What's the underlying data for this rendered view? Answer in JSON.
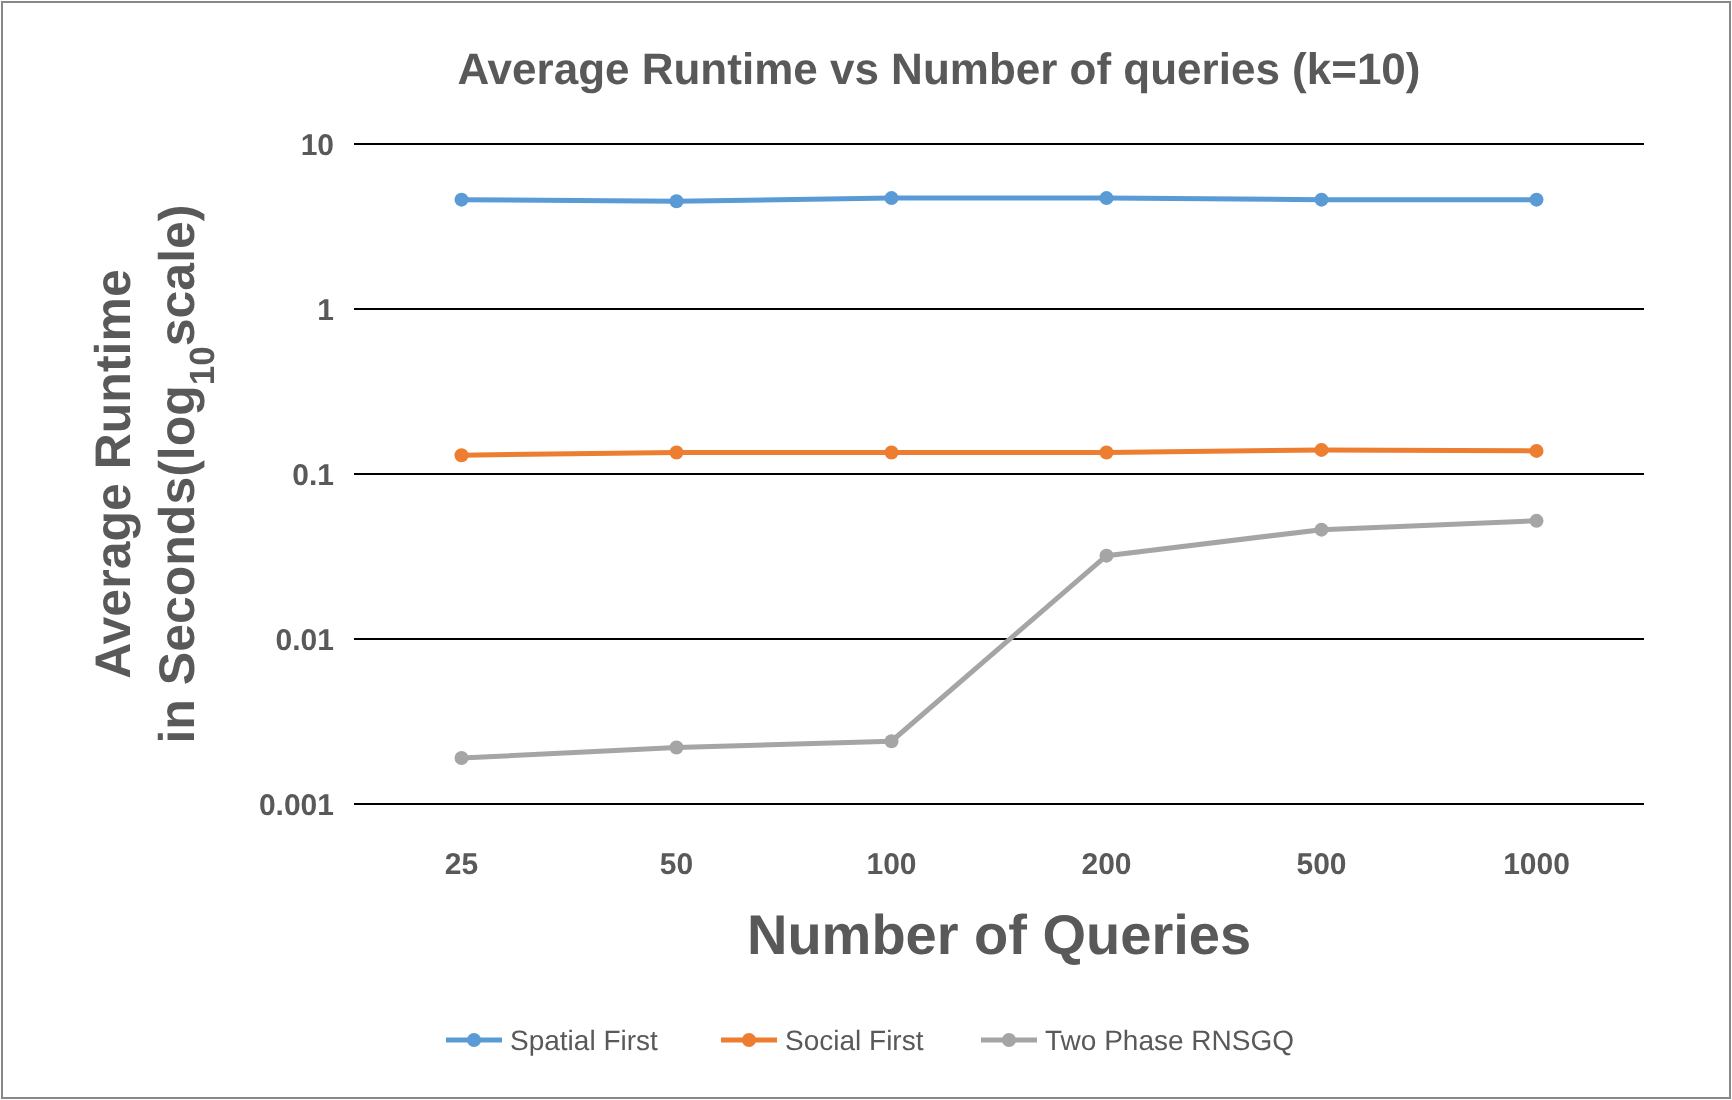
{
  "chart_data": {
    "type": "line",
    "title": "Average Runtime vs Number of queries (k=10)",
    "xlabel": "Number of Queries",
    "ylabel": "Average Runtime in Seconds(log$_{10}$scale)",
    "categories": [
      "25",
      "50",
      "100",
      "200",
      "500",
      "1000"
    ],
    "series": [
      {
        "name": "Spatial First",
        "color": "#5b9bd5",
        "values": [
          4.6,
          4.5,
          4.7,
          4.7,
          4.6,
          4.6
        ]
      },
      {
        "name": "Social First",
        "color": "#ed7d31",
        "values": [
          0.13,
          0.135,
          0.135,
          0.135,
          0.14,
          0.138
        ]
      },
      {
        "name": "Two Phase RNSGQ",
        "color": "#a5a5a5",
        "values": [
          0.0019,
          0.0022,
          0.0024,
          0.032,
          0.046,
          0.052
        ]
      }
    ],
    "log": true,
    "ylim": [
      0.001,
      10
    ],
    "yticks": [
      0.001,
      0.01,
      0.1,
      1,
      10
    ],
    "grid": "y",
    "legend": "bottom",
    "marker": "circle",
    "line_style": "solid"
  }
}
